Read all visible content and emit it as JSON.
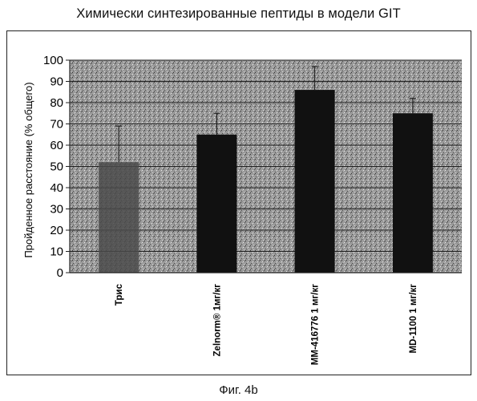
{
  "chart_data": {
    "type": "bar",
    "title": "Химически синтезированные пептиды в модели GIT",
    "ylabel": "Пройденное расстояние (% общего)",
    "xlabel": "",
    "ylim": [
      0,
      100
    ],
    "yticks": [
      0,
      10,
      20,
      30,
      40,
      50,
      60,
      70,
      80,
      90,
      100
    ],
    "categories": [
      "Трис",
      "Zelnorm® 1мг/кг",
      "MM-416776 1 мг/кг",
      "MD-1100 1 мг/кг"
    ],
    "values": [
      52,
      65,
      86,
      75
    ],
    "error_upper": [
      69,
      75,
      97,
      82
    ],
    "error_lower": [
      52,
      65,
      86,
      75
    ],
    "grid": true,
    "bar_color": "#111111",
    "first_bar_color": "#4a4a4a"
  },
  "caption": "Фиг. 4b"
}
